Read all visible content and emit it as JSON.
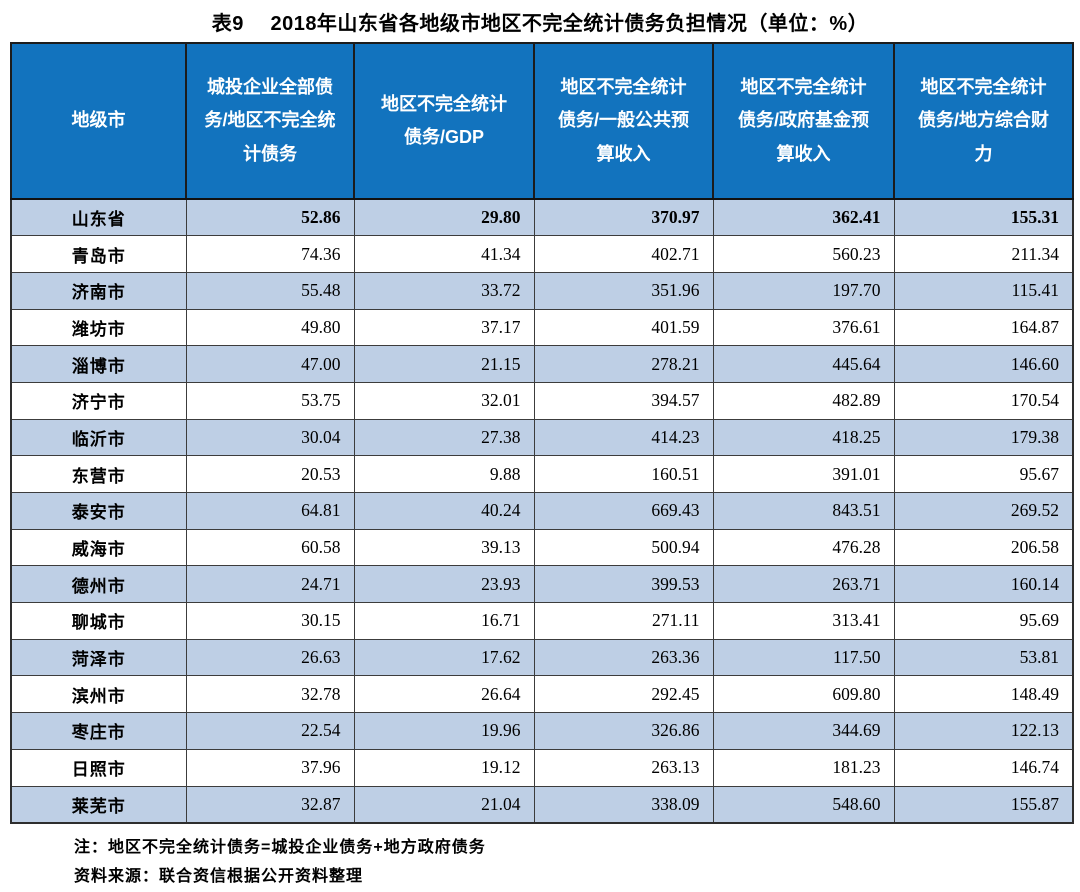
{
  "title": "表9　 2018年山东省各地级市地区不完全统计债务负担情况（单位：%）",
  "table": {
    "columns": [
      "地级市",
      "城投企业全部债\n务/地区不完全统\n计债务",
      "地区不完全统计\n债务/GDP",
      "地区不完全统计\n债务/一般公共预\n算收入",
      "地区不完全统计\n债务/政府基金预\n算收入",
      "地区不完全统计\n债务/地方综合财\n力"
    ],
    "rows": [
      {
        "name": "山东省",
        "values": [
          "52.86",
          "29.80",
          "370.97",
          "362.41",
          "155.31"
        ],
        "bold": true
      },
      {
        "name": "青岛市",
        "values": [
          "74.36",
          "41.34",
          "402.71",
          "560.23",
          "211.34"
        ],
        "bold": false
      },
      {
        "name": "济南市",
        "values": [
          "55.48",
          "33.72",
          "351.96",
          "197.70",
          "115.41"
        ],
        "bold": false
      },
      {
        "name": "潍坊市",
        "values": [
          "49.80",
          "37.17",
          "401.59",
          "376.61",
          "164.87"
        ],
        "bold": false
      },
      {
        "name": "淄博市",
        "values": [
          "47.00",
          "21.15",
          "278.21",
          "445.64",
          "146.60"
        ],
        "bold": false
      },
      {
        "name": "济宁市",
        "values": [
          "53.75",
          "32.01",
          "394.57",
          "482.89",
          "170.54"
        ],
        "bold": false
      },
      {
        "name": "临沂市",
        "values": [
          "30.04",
          "27.38",
          "414.23",
          "418.25",
          "179.38"
        ],
        "bold": false
      },
      {
        "name": "东营市",
        "values": [
          "20.53",
          "9.88",
          "160.51",
          "391.01",
          "95.67"
        ],
        "bold": false
      },
      {
        "name": "泰安市",
        "values": [
          "64.81",
          "40.24",
          "669.43",
          "843.51",
          "269.52"
        ],
        "bold": false
      },
      {
        "name": "威海市",
        "values": [
          "60.58",
          "39.13",
          "500.94",
          "476.28",
          "206.58"
        ],
        "bold": false
      },
      {
        "name": "德州市",
        "values": [
          "24.71",
          "23.93",
          "399.53",
          "263.71",
          "160.14"
        ],
        "bold": false
      },
      {
        "name": "聊城市",
        "values": [
          "30.15",
          "16.71",
          "271.11",
          "313.41",
          "95.69"
        ],
        "bold": false
      },
      {
        "name": "菏泽市",
        "values": [
          "26.63",
          "17.62",
          "263.36",
          "117.50",
          "53.81"
        ],
        "bold": false
      },
      {
        "name": "滨州市",
        "values": [
          "32.78",
          "26.64",
          "292.45",
          "609.80",
          "148.49"
        ],
        "bold": false
      },
      {
        "name": "枣庄市",
        "values": [
          "22.54",
          "19.96",
          "326.86",
          "344.69",
          "122.13"
        ],
        "bold": false
      },
      {
        "name": "日照市",
        "values": [
          "37.96",
          "19.12",
          "263.13",
          "181.23",
          "146.74"
        ],
        "bold": false
      },
      {
        "name": "莱芜市",
        "values": [
          "32.87",
          "21.04",
          "338.09",
          "548.60",
          "155.87"
        ],
        "bold": false
      }
    ]
  },
  "notes": [
    "注：地区不完全统计债务=城投企业债务+地方政府债务",
    "资料来源：联合资信根据公开资料整理"
  ],
  "colors": {
    "header_bg": "#1273BE",
    "band_bg": "#BECFE5",
    "header_text": "#FFFFFF",
    "border": "#2E2E2E"
  }
}
